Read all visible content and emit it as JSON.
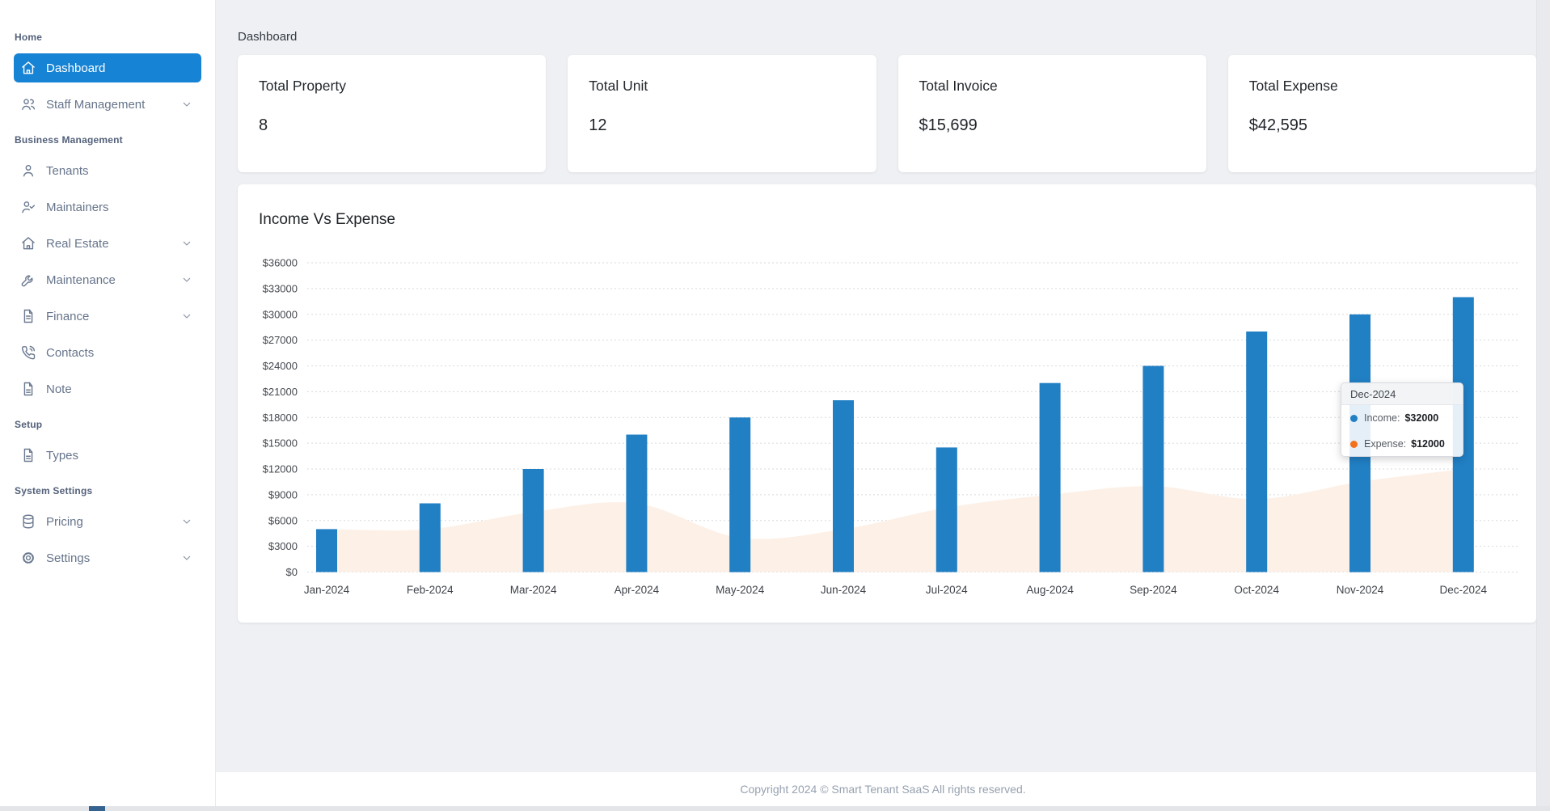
{
  "header": {
    "page_title": "Dashboard"
  },
  "sidebar": {
    "sections": [
      {
        "label": "Home",
        "items": [
          {
            "label": "Dashboard",
            "icon": "home-icon",
            "active": true,
            "expandable": false
          },
          {
            "label": "Staff Management",
            "icon": "users-icon",
            "active": false,
            "expandable": true
          }
        ]
      },
      {
        "label": "Business Management",
        "items": [
          {
            "label": "Tenants",
            "icon": "user-icon",
            "active": false,
            "expandable": false
          },
          {
            "label": "Maintainers",
            "icon": "user-check-icon",
            "active": false,
            "expandable": false
          },
          {
            "label": "Real Estate",
            "icon": "house-icon",
            "active": false,
            "expandable": true
          },
          {
            "label": "Maintenance",
            "icon": "wrench-icon",
            "active": false,
            "expandable": true
          },
          {
            "label": "Finance",
            "icon": "file-text-icon",
            "active": false,
            "expandable": true
          },
          {
            "label": "Contacts",
            "icon": "phone-icon",
            "active": false,
            "expandable": false
          },
          {
            "label": "Note",
            "icon": "file-icon",
            "active": false,
            "expandable": false
          }
        ]
      },
      {
        "label": "Setup",
        "items": [
          {
            "label": "Types",
            "icon": "file-icon",
            "active": false,
            "expandable": false
          }
        ]
      },
      {
        "label": "System Settings",
        "items": [
          {
            "label": "Pricing",
            "icon": "database-icon",
            "active": false,
            "expandable": true
          },
          {
            "label": "Settings",
            "icon": "gear-icon",
            "active": false,
            "expandable": true
          }
        ]
      }
    ]
  },
  "stat_cards": [
    {
      "title": "Total Property",
      "value": "8"
    },
    {
      "title": "Total Unit",
      "value": "12"
    },
    {
      "title": "Total Invoice",
      "value": "$15,699"
    },
    {
      "title": "Total Expense",
      "value": "$42,595"
    }
  ],
  "chart_data": {
    "type": "mixed",
    "title": "Income Vs Expense",
    "categories": [
      "Jan-2024",
      "Feb-2024",
      "Mar-2024",
      "Apr-2024",
      "May-2024",
      "Jun-2024",
      "Jul-2024",
      "Aug-2024",
      "Sep-2024",
      "Oct-2024",
      "Nov-2024",
      "Dec-2024"
    ],
    "series": [
      {
        "name": "Income",
        "type": "bar",
        "color": "#217fc4",
        "values": [
          5000,
          8000,
          12000,
          16000,
          18000,
          20000,
          14500,
          22000,
          24000,
          28000,
          30000,
          32000
        ]
      },
      {
        "name": "Expense",
        "type": "area",
        "color": "#f4701b",
        "fill": "#fdf0e7",
        "values": [
          5000,
          5000,
          7000,
          8000,
          4000,
          5000,
          7500,
          9000,
          10000,
          8500,
          10500,
          12000
        ]
      }
    ],
    "ylim": [
      0,
      36000
    ],
    "tick_step": 3000,
    "tick_prefix": "$",
    "grid": "dotted horizontal",
    "legend_position": "none"
  },
  "tooltip": {
    "title": "Dec-2024",
    "rows": [
      {
        "label": "Income:",
        "value": "$32000",
        "color": "#217fc4"
      },
      {
        "label": "Expense:",
        "value": "$12000",
        "color": "#f4701b"
      }
    ]
  },
  "footer": {
    "text": "Copyright 2024 © Smart Tenant SaaS All rights reserved."
  },
  "colors": {
    "sidebar_active": "#1783d4",
    "bar_blue": "#217fc4",
    "expense_orange": "#f4701b",
    "area_fill": "#fdf0e7",
    "background": "#eef0f3"
  }
}
